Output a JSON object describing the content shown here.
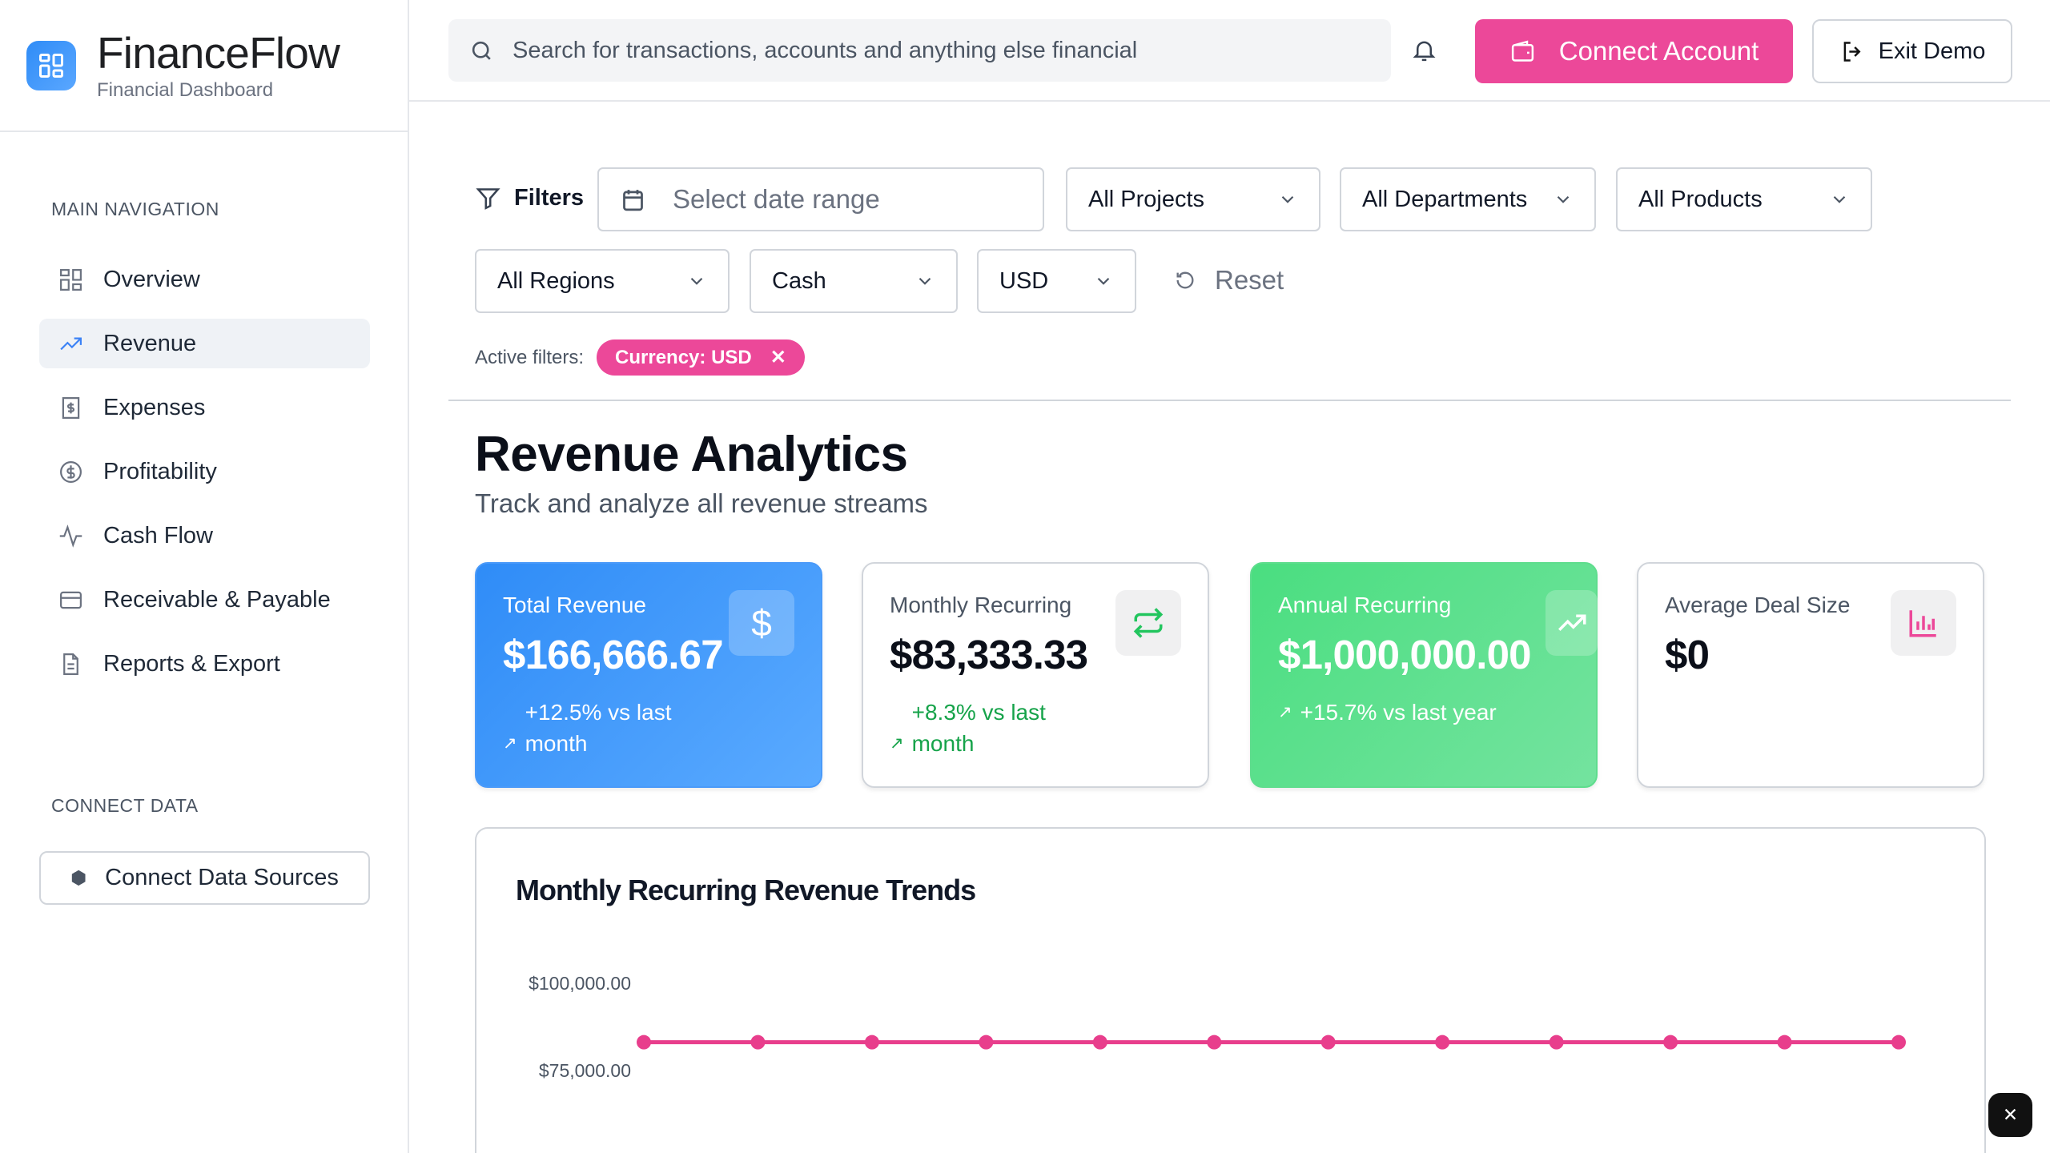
{
  "brand": {
    "title": "FinanceFlow",
    "subtitle": "Financial Dashboard"
  },
  "sidebar": {
    "main_label": "MAIN NAVIGATION",
    "items": [
      {
        "label": "Overview",
        "icon": "layout-grid-icon"
      },
      {
        "label": "Revenue",
        "icon": "trending-up-icon",
        "active": true
      },
      {
        "label": "Expenses",
        "icon": "receipt-icon"
      },
      {
        "label": "Profitability",
        "icon": "dollar-circle-icon"
      },
      {
        "label": "Cash Flow",
        "icon": "activity-icon"
      },
      {
        "label": "Receivable & Payable",
        "icon": "credit-card-icon"
      },
      {
        "label": "Reports & Export",
        "icon": "file-text-icon"
      }
    ],
    "connect_label": "CONNECT DATA",
    "connect_button": "Connect Data Sources"
  },
  "topbar": {
    "search_placeholder": "Search for transactions, accounts and anything else financial",
    "connect_account": "Connect Account",
    "exit_demo": "Exit Demo"
  },
  "filters": {
    "label": "Filters",
    "date_placeholder": "Select date range",
    "projects": "All Projects",
    "departments": "All Departments",
    "products": "All Products",
    "regions": "All Regions",
    "basis": "Cash",
    "currency": "USD",
    "reset": "Reset",
    "active_label": "Active filters:",
    "active_chip": "Currency: USD"
  },
  "page": {
    "title": "Revenue Analytics",
    "subtitle": "Track and analyze all revenue streams"
  },
  "cards": [
    {
      "label": "Total Revenue",
      "value": "$166,666.67",
      "trend": "+12.5% vs last month",
      "color": "#3b82f6"
    },
    {
      "label": "Monthly Recurring",
      "value": "$83,333.33",
      "trend": "+8.3% vs last month",
      "color": "#22c55e"
    },
    {
      "label": "Annual Recurring",
      "value": "$1,000,000.00",
      "trend": "+15.7% vs last year",
      "color": "#4ade80"
    },
    {
      "label": "Average Deal Size",
      "value": "$0",
      "trend": "",
      "color": "#ec4899"
    }
  ],
  "chart_data": {
    "type": "line",
    "title": "Monthly Recurring Revenue Trends",
    "y_ticks": [
      "$100,000.00",
      "$75,000.00"
    ],
    "ylim": [
      50000,
      100000
    ],
    "series": [
      {
        "values": [
          83333.33,
          83333.33,
          83333.33,
          83333.33,
          83333.33,
          83333.33,
          83333.33,
          83333.33,
          83333.33,
          83333.33,
          83333.33,
          83333.33
        ]
      }
    ],
    "color": "#e83e8c",
    "grid": false
  }
}
